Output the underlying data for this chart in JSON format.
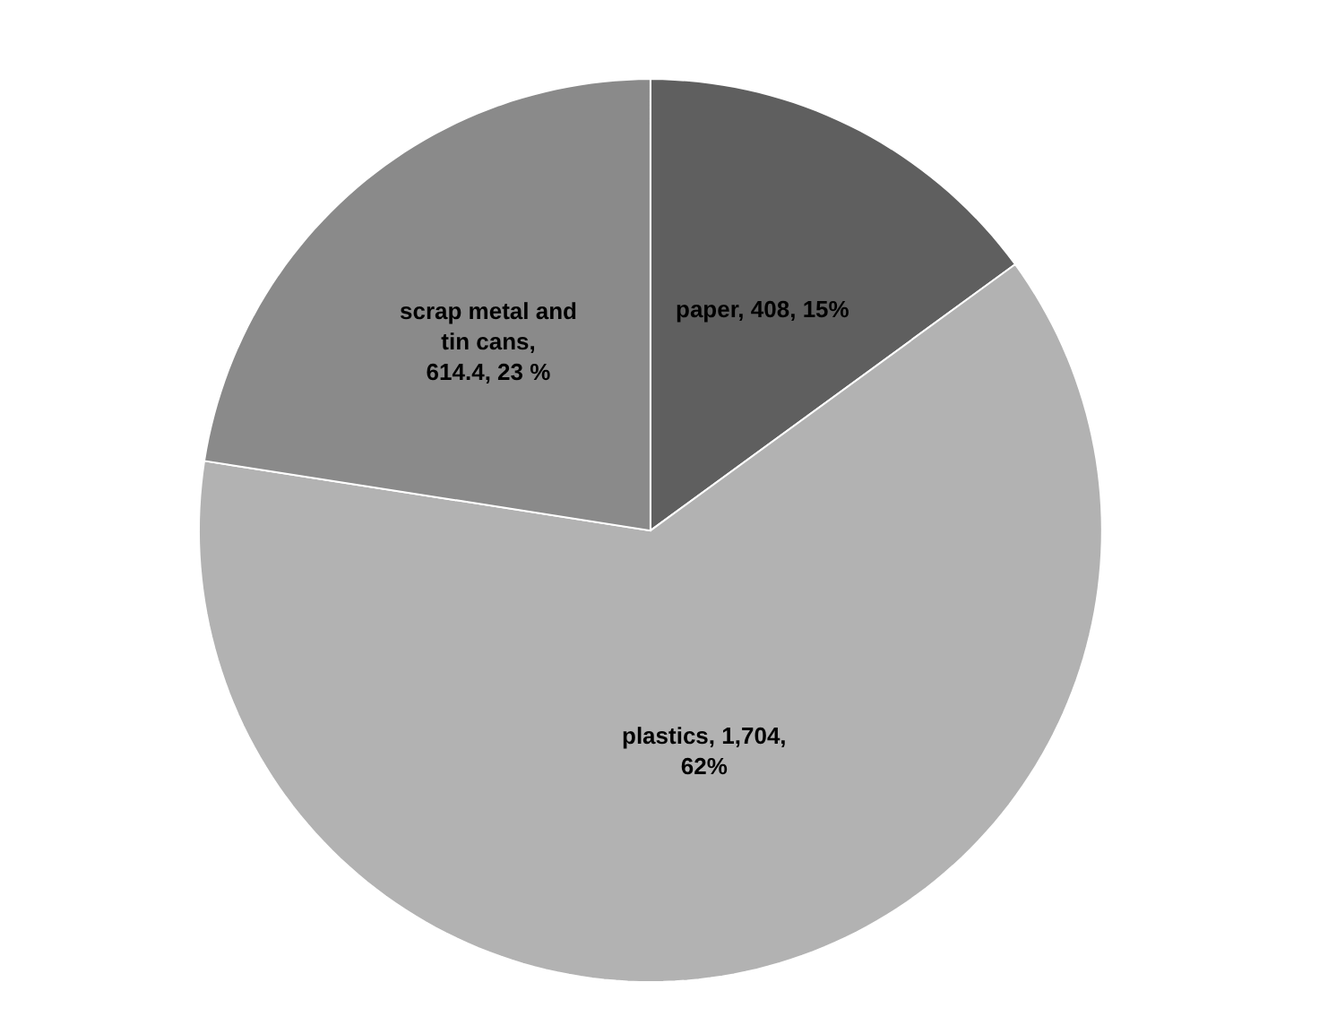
{
  "chart_data": {
    "type": "pie",
    "categories": [
      "paper",
      "plastics",
      "scrap metal and tin cans"
    ],
    "values": [
      408,
      1704,
      614.4
    ],
    "colors": [
      "#5f5f5f",
      "#b2b2b2",
      "#8a8a8a"
    ],
    "value_labels": [
      ", 408, 15%",
      ", 1,704, 62%",
      ", 614.4, 23 %"
    ],
    "legend": false
  }
}
